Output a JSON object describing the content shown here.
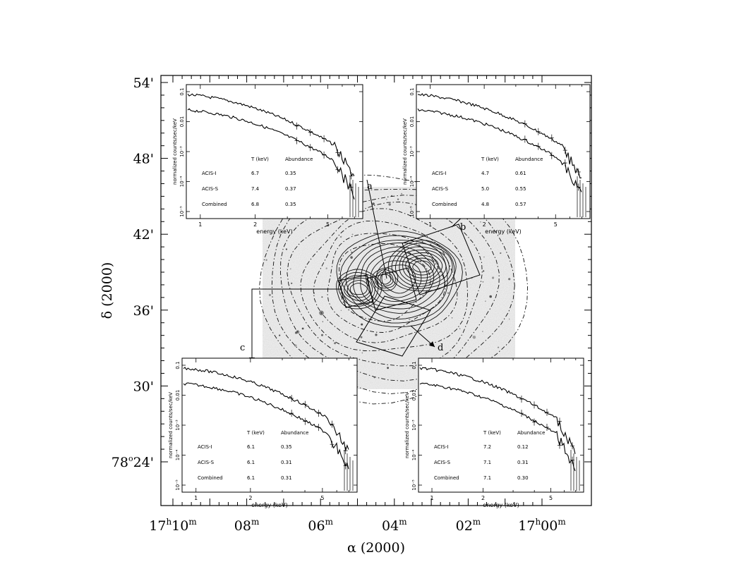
{
  "figure": {
    "x_axis_title": "α (2000)",
    "y_axis_title": "δ (2000)",
    "x_ticks": [
      {
        "h": "17",
        "m": "10",
        "ra": 0
      },
      {
        "h": "",
        "m": "08",
        "ra": 2
      },
      {
        "h": "",
        "m": "06",
        "ra": 4
      },
      {
        "h": "",
        "m": "04",
        "ra": 6
      },
      {
        "h": "",
        "m": "02",
        "ra": 8
      },
      {
        "h": "17",
        "m": "00",
        "ra": 10
      }
    ],
    "y_ticks": [
      {
        "deg": "",
        "label": "54'",
        "dec": 54
      },
      {
        "deg": "",
        "label": "48'",
        "dec": 48
      },
      {
        "deg": "",
        "label": "42'",
        "dec": 42
      },
      {
        "deg": "",
        "label": "36'",
        "dec": 36
      },
      {
        "deg": "",
        "label": "30'",
        "dec": 30
      },
      {
        "deg": "78",
        "label": "24'",
        "dec": 24
      }
    ],
    "region_labels": [
      "a",
      "b",
      "c",
      "d"
    ]
  },
  "insets": [
    {
      "id": "a",
      "ylabel": "normalized counts/sec/keV",
      "xlabel": "energy (keV)",
      "x_ticks": [
        "1",
        "2",
        "5"
      ],
      "y_ticks": [
        "10⁻⁵",
        "10⁻⁴",
        "10⁻³",
        "0.01",
        "0.1"
      ],
      "table_header": [
        "T (keV)",
        "Abundance"
      ],
      "rows": [
        {
          "name": "ACIS-I",
          "t": "6.7",
          "ab": "0.35"
        },
        {
          "name": "ACIS-S",
          "t": "7.4",
          "ab": "0.37"
        },
        {
          "name": "Combined",
          "t": "6.8",
          "ab": "0.35"
        }
      ]
    },
    {
      "id": "b",
      "ylabel": "normalized counts/sec/keV",
      "xlabel": "energy (keV)",
      "x_ticks": [
        "1",
        "2",
        "5"
      ],
      "y_ticks": [
        "10⁻⁵",
        "10⁻⁴",
        "10⁻³",
        "0.01",
        "0.1"
      ],
      "table_header": [
        "T (keV)",
        "Abundance"
      ],
      "rows": [
        {
          "name": "ACIS-I",
          "t": "4.7",
          "ab": "0.61"
        },
        {
          "name": "ACIS-S",
          "t": "5.0",
          "ab": "0.55"
        },
        {
          "name": "Combined",
          "t": "4.8",
          "ab": "0.57"
        }
      ]
    },
    {
      "id": "c",
      "ylabel": "normalized counts/sec/keV",
      "xlabel": "energy (keV)",
      "x_ticks": [
        "1",
        "2",
        "5"
      ],
      "y_ticks": [
        "10⁻⁵",
        "10⁻⁴",
        "10⁻³",
        "0.01",
        "0.1"
      ],
      "table_header": [
        "T (keV)",
        "Abundance"
      ],
      "rows": [
        {
          "name": "ACIS-I",
          "t": "6.1",
          "ab": "0.35"
        },
        {
          "name": "ACIS-S",
          "t": "6.1",
          "ab": "0.31"
        },
        {
          "name": "Combined",
          "t": "6.1",
          "ab": "0.31"
        }
      ]
    },
    {
      "id": "d",
      "ylabel": "normalized counts/sec/keV",
      "xlabel": "energy (keV)",
      "x_ticks": [
        "1",
        "2",
        "5"
      ],
      "y_ticks": [
        "10⁻⁵",
        "10⁻⁴",
        "10⁻³",
        "0.01",
        "0.1"
      ],
      "table_header": [
        "T (keV)",
        "Abundance"
      ],
      "rows": [
        {
          "name": "ACIS-I",
          "t": "7.2",
          "ab": "0.12"
        },
        {
          "name": "ACIS-S",
          "t": "7.1",
          "ab": "0.31"
        },
        {
          "name": "Combined",
          "t": "7.1",
          "ab": "0.30"
        }
      ]
    }
  ]
}
